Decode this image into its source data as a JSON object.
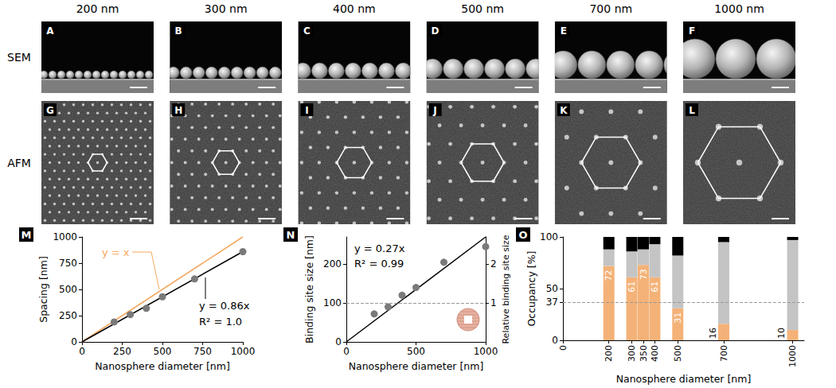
{
  "figure": {
    "rows": [
      "SEM",
      "AFM"
    ],
    "columns": [
      {
        "label": "200 nm",
        "diameter": 200,
        "sem_panel": "A",
        "afm_panel": "G"
      },
      {
        "label": "300 nm",
        "diameter": 300,
        "sem_panel": "B",
        "afm_panel": "H"
      },
      {
        "label": "400 nm",
        "diameter": 400,
        "sem_panel": "C",
        "afm_panel": "I"
      },
      {
        "label": "500 nm",
        "diameter": 500,
        "sem_panel": "D",
        "afm_panel": "J"
      },
      {
        "label": "700 nm",
        "diameter": 700,
        "sem_panel": "E",
        "afm_panel": "K"
      },
      {
        "label": "1000 nm",
        "diameter": 1000,
        "sem_panel": "F",
        "afm_panel": "L"
      }
    ]
  },
  "chart_data": [
    {
      "panel": "M",
      "type": "scatter",
      "x_label": "Nanosphere diameter [nm]",
      "y_label": "Spacing [nm]",
      "x": [
        200,
        300,
        400,
        500,
        700,
        1000
      ],
      "values": [
        190,
        260,
        320,
        430,
        600,
        860
      ],
      "color": "#7a7a7a",
      "xlim": [
        0,
        1000
      ],
      "xticks": [
        0,
        250,
        500,
        750,
        1000
      ],
      "ylim": [
        0,
        1000
      ],
      "yticks": [
        0,
        250,
        500,
        750,
        1000
      ],
      "fits": [
        {
          "label": "y = x",
          "color": "#f5a860",
          "x": [
            0,
            1000
          ],
          "y": [
            0,
            1000
          ]
        },
        {
          "label": "y = 0.86x",
          "color": "#000000",
          "x": [
            0,
            1000
          ],
          "y": [
            0,
            860
          ]
        }
      ],
      "annotations": [
        "R² = 1.0"
      ]
    },
    {
      "panel": "N",
      "type": "scatter",
      "x_label": "Nanosphere diameter [nm]",
      "y_label": "Binding site size [nm]",
      "y2_label": "Relative binding site size",
      "x": [
        200,
        300,
        400,
        500,
        700,
        1000
      ],
      "values": [
        72,
        90,
        120,
        140,
        205,
        245
      ],
      "color": "#7a7a7a",
      "xlim": [
        0,
        1000
      ],
      "xticks": [
        0,
        500,
        1000
      ],
      "ylim": [
        0,
        270
      ],
      "yticks": [
        0,
        100,
        200
      ],
      "y2lim": [
        0,
        2.7
      ],
      "y2ticks": [
        1,
        2
      ],
      "reference_line": 100,
      "fits": [
        {
          "label": "y = 0.27x",
          "color": "#000000",
          "x": [
            0,
            1000
          ],
          "y": [
            0,
            270
          ]
        }
      ],
      "annotations": [
        "R² = 0.99"
      ]
    },
    {
      "panel": "O",
      "type": "bar",
      "stacked": true,
      "x_label": "Nanosphere diameter [nm]",
      "y_label": "Occupancy [%]",
      "x": [
        200,
        300,
        350,
        400,
        500,
        700,
        1000
      ],
      "series": [
        {
          "color": "#f4b278",
          "data_labels": true,
          "values": [
            72,
            61,
            73,
            61,
            31,
            16,
            10
          ]
        },
        {
          "color": "#c4c4c4",
          "values": [
            16,
            25,
            15,
            32,
            51,
            79,
            87
          ]
        },
        {
          "color": "#000000",
          "values": [
            12,
            14,
            12,
            7,
            18,
            5,
            3
          ]
        }
      ],
      "xlim": [
        0,
        1050
      ],
      "xticks": [
        0,
        200,
        300,
        350,
        400,
        500,
        700,
        1000
      ],
      "ylim": [
        0,
        100
      ],
      "yticks": [
        0,
        37,
        50,
        100
      ],
      "reference_line": 37
    }
  ]
}
